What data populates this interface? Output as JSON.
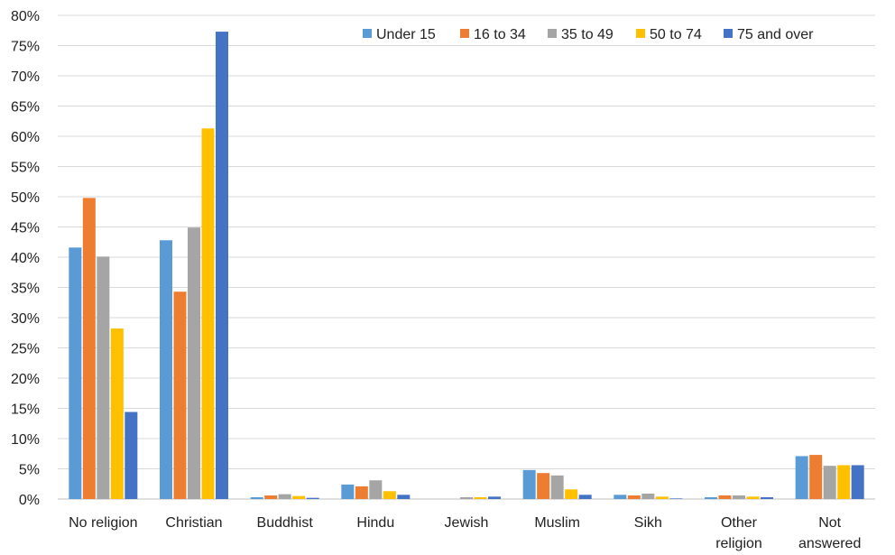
{
  "chart_data": {
    "type": "bar",
    "categories": [
      "No religion",
      "Christian",
      "Buddhist",
      "Hindu",
      "Jewish",
      "Muslim",
      "Sikh",
      "Other religion",
      "Not answered"
    ],
    "category_lines": [
      [
        "No religion"
      ],
      [
        "Christian"
      ],
      [
        "Buddhist"
      ],
      [
        "Hindu"
      ],
      [
        "Jewish"
      ],
      [
        "Muslim"
      ],
      [
        "Sikh"
      ],
      [
        "Other",
        "religion"
      ],
      [
        "Not",
        "answered"
      ]
    ],
    "series": [
      {
        "name": "Under 15",
        "color": "#5B9BD5",
        "values": [
          41.6,
          42.8,
          0.3,
          2.4,
          0.0,
          4.8,
          0.7,
          0.3,
          7.1
        ]
      },
      {
        "name": "16 to 34",
        "color": "#ED7D31",
        "values": [
          49.8,
          34.3,
          0.6,
          2.1,
          0.0,
          4.3,
          0.6,
          0.6,
          7.3
        ]
      },
      {
        "name": "35 to 49",
        "color": "#A5A5A5",
        "values": [
          40.1,
          44.9,
          0.8,
          3.1,
          0.3,
          3.9,
          0.9,
          0.6,
          5.5
        ]
      },
      {
        "name": "50 to 74",
        "color": "#FFC000",
        "values": [
          28.2,
          61.3,
          0.5,
          1.3,
          0.3,
          1.6,
          0.4,
          0.4,
          5.6
        ]
      },
      {
        "name": "75 and over",
        "color": "#4472C4",
        "values": [
          14.4,
          77.3,
          0.2,
          0.7,
          0.4,
          0.7,
          0.1,
          0.3,
          5.6
        ]
      }
    ],
    "ylim": [
      0,
      80
    ],
    "yticks": [
      "0%",
      "5%",
      "10%",
      "15%",
      "20%",
      "25%",
      "30%",
      "35%",
      "40%",
      "45%",
      "50%",
      "55%",
      "60%",
      "65%",
      "70%",
      "75%",
      "80%"
    ],
    "grid": true,
    "legend_position": "top-right",
    "title": "",
    "xlabel": "",
    "ylabel": ""
  }
}
